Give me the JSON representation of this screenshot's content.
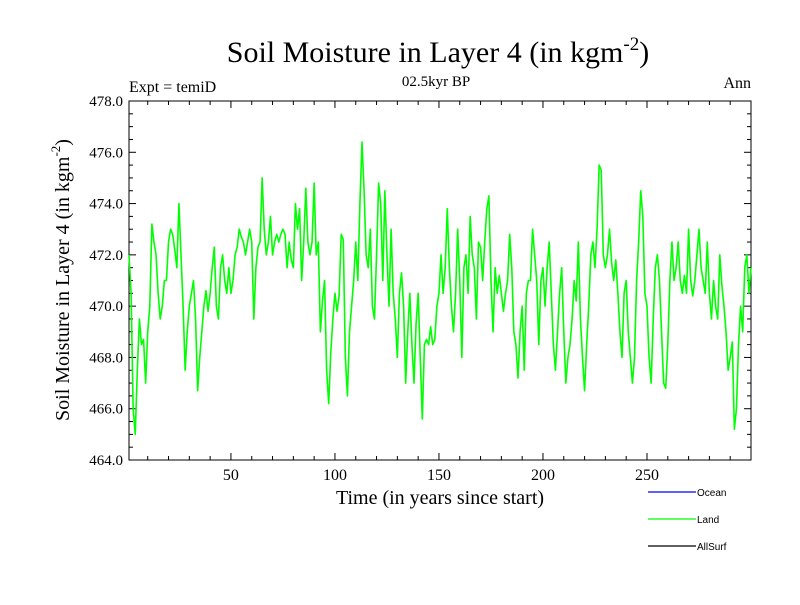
{
  "chart_data": {
    "type": "line",
    "title": "Soil Moisture in Layer 4 (in kgm",
    "title_sup": "-2",
    "title_close": ")",
    "subtitle_left": "Expt = temiD",
    "subtitle_center": "02.5kyr BP",
    "subtitle_right": "Ann",
    "xlabel": "Time (in years since start)",
    "ylabel": "Soil Moisture in Layer 4 (in kgm",
    "ylabel_sup": "-2",
    "ylabel_close": ")",
    "xlim": [
      1,
      300
    ],
    "ylim": [
      464.0,
      478.0
    ],
    "x_ticks": [
      50,
      100,
      150,
      200,
      250
    ],
    "x_tick_labels": [
      "50",
      "100",
      "150",
      "200",
      "250"
    ],
    "y_ticks": [
      464,
      466,
      468,
      470,
      472,
      474,
      476,
      478
    ],
    "y_tick_labels": [
      "464.0",
      "466.0",
      "468.0",
      "470.0",
      "472.0",
      "474.0",
      "476.0",
      "478.0"
    ],
    "legend": [
      {
        "name": "Ocean",
        "color": "#0000ff"
      },
      {
        "name": "Land",
        "color": "#00ff00"
      },
      {
        "name": "AllSurf",
        "color": "#000000"
      }
    ],
    "series": [
      {
        "name": "Land",
        "color": "#00ff00",
        "points": [
          [
            1,
            472.0
          ],
          [
            2,
            470.5
          ],
          [
            3,
            466.0
          ],
          [
            4,
            465.0
          ],
          [
            5,
            467.5
          ],
          [
            6,
            469.5
          ],
          [
            7,
            468.5
          ],
          [
            8,
            468.7
          ],
          [
            9,
            467.0
          ],
          [
            10,
            469.0
          ],
          [
            11,
            470.0
          ],
          [
            12,
            473.2
          ],
          [
            13,
            472.5
          ],
          [
            14,
            472.0
          ],
          [
            15,
            470.5
          ],
          [
            16,
            469.5
          ],
          [
            17,
            470.0
          ],
          [
            18,
            471.0
          ],
          [
            19,
            471.0
          ],
          [
            20,
            472.5
          ],
          [
            21,
            473.0
          ],
          [
            22,
            472.8
          ],
          [
            23,
            472.2
          ],
          [
            24,
            471.5
          ],
          [
            25,
            474.0
          ],
          [
            26,
            472.0
          ],
          [
            27,
            470.0
          ],
          [
            28,
            467.5
          ],
          [
            29,
            469.0
          ],
          [
            30,
            470.0
          ],
          [
            31,
            470.5
          ],
          [
            32,
            471.0
          ],
          [
            33,
            469.5
          ],
          [
            34,
            466.7
          ],
          [
            35,
            468.0
          ],
          [
            36,
            469.0
          ],
          [
            37,
            470.0
          ],
          [
            38,
            470.6
          ],
          [
            39,
            469.8
          ],
          [
            40,
            470.5
          ],
          [
            41,
            471.5
          ],
          [
            42,
            472.3
          ],
          [
            43,
            470.0
          ],
          [
            44,
            469.5
          ],
          [
            45,
            471.5
          ],
          [
            46,
            472.0
          ],
          [
            47,
            471.0
          ],
          [
            48,
            470.5
          ],
          [
            49,
            471.5
          ],
          [
            50,
            470.5
          ],
          [
            51,
            471.0
          ],
          [
            52,
            472.0
          ],
          [
            53,
            472.3
          ],
          [
            54,
            473.0
          ],
          [
            55,
            472.7
          ],
          [
            56,
            472.5
          ],
          [
            57,
            472.0
          ],
          [
            58,
            472.5
          ],
          [
            59,
            473.0
          ],
          [
            60,
            472.5
          ],
          [
            61,
            469.5
          ],
          [
            62,
            471.5
          ],
          [
            63,
            472.3
          ],
          [
            64,
            472.5
          ],
          [
            65,
            475.0
          ],
          [
            66,
            473.0
          ],
          [
            67,
            472.0
          ],
          [
            68,
            472.5
          ],
          [
            69,
            473.5
          ],
          [
            70,
            472.0
          ],
          [
            71,
            472.5
          ],
          [
            72,
            472.8
          ],
          [
            73,
            472.5
          ],
          [
            74,
            472.8
          ],
          [
            75,
            473.0
          ],
          [
            76,
            472.8
          ],
          [
            77,
            471.5
          ],
          [
            78,
            472.5
          ],
          [
            79,
            471.8
          ],
          [
            80,
            471.5
          ],
          [
            81,
            474.0
          ],
          [
            82,
            473.0
          ],
          [
            83,
            473.8
          ],
          [
            84,
            471.0
          ],
          [
            85,
            472.5
          ],
          [
            86,
            474.6
          ],
          [
            87,
            472.5
          ],
          [
            88,
            472.0
          ],
          [
            89,
            472.5
          ],
          [
            90,
            474.8
          ],
          [
            91,
            472.0
          ],
          [
            92,
            472.5
          ],
          [
            93,
            469.0
          ],
          [
            94,
            470.2
          ],
          [
            95,
            471.0
          ],
          [
            96,
            467.5
          ],
          [
            97,
            466.2
          ],
          [
            98,
            468.2
          ],
          [
            99,
            469.5
          ],
          [
            100,
            470.5
          ],
          [
            101,
            469.8
          ],
          [
            102,
            470.4
          ],
          [
            103,
            472.8
          ],
          [
            104,
            472.6
          ],
          [
            105,
            468.0
          ],
          [
            106,
            466.5
          ],
          [
            107,
            469.0
          ],
          [
            108,
            470.0
          ],
          [
            109,
            471.0
          ],
          [
            110,
            472.5
          ],
          [
            111,
            471.0
          ],
          [
            112,
            474.0
          ],
          [
            113,
            476.4
          ],
          [
            114,
            474.5
          ],
          [
            115,
            472.0
          ],
          [
            116,
            471.5
          ],
          [
            117,
            473.0
          ],
          [
            118,
            470.0
          ],
          [
            119,
            469.5
          ],
          [
            120,
            472.0
          ],
          [
            121,
            474.8
          ],
          [
            122,
            474.0
          ],
          [
            123,
            471.0
          ],
          [
            124,
            474.5
          ],
          [
            125,
            472.0
          ],
          [
            126,
            470.0
          ],
          [
            127,
            473.0
          ],
          [
            128,
            470.5
          ],
          [
            129,
            469.5
          ],
          [
            130,
            468.0
          ],
          [
            131,
            470.5
          ],
          [
            132,
            471.3
          ],
          [
            133,
            470.0
          ],
          [
            134,
            467.0
          ],
          [
            135,
            469.0
          ],
          [
            136,
            470.5
          ],
          [
            137,
            468.5
          ],
          [
            138,
            467.0
          ],
          [
            139,
            469.3
          ],
          [
            140,
            470.5
          ],
          [
            141,
            468.0
          ],
          [
            142,
            465.6
          ],
          [
            143,
            468.5
          ],
          [
            144,
            468.7
          ],
          [
            145,
            468.5
          ],
          [
            146,
            469.2
          ],
          [
            147,
            468.5
          ],
          [
            148,
            468.7
          ],
          [
            149,
            470.0
          ],
          [
            150,
            470.5
          ],
          [
            151,
            472.0
          ],
          [
            152,
            470.5
          ],
          [
            153,
            471.5
          ],
          [
            154,
            473.8
          ],
          [
            155,
            471.5
          ],
          [
            156,
            470.0
          ],
          [
            157,
            469.0
          ],
          [
            158,
            470.5
          ],
          [
            159,
            473.0
          ],
          [
            160,
            471.0
          ],
          [
            161,
            468.0
          ],
          [
            162,
            471.5
          ],
          [
            163,
            472.0
          ],
          [
            164,
            470.5
          ],
          [
            165,
            473.5
          ],
          [
            166,
            472.0
          ],
          [
            167,
            471.5
          ],
          [
            168,
            469.5
          ],
          [
            169,
            472.5
          ],
          [
            170,
            472.3
          ],
          [
            171,
            471.0
          ],
          [
            172,
            472.5
          ],
          [
            173,
            473.8
          ],
          [
            174,
            474.3
          ],
          [
            175,
            471.0
          ],
          [
            176,
            469.0
          ],
          [
            177,
            471.5
          ],
          [
            178,
            470.5
          ],
          [
            179,
            471.2
          ],
          [
            180,
            470.5
          ],
          [
            181,
            469.8
          ],
          [
            182,
            470.5
          ],
          [
            183,
            471.0
          ],
          [
            184,
            472.8
          ],
          [
            185,
            471.5
          ],
          [
            186,
            469.0
          ],
          [
            187,
            468.5
          ],
          [
            188,
            467.2
          ],
          [
            189,
            469.0
          ],
          [
            190,
            470.0
          ],
          [
            191,
            467.5
          ],
          [
            192,
            470.5
          ],
          [
            193,
            471.0
          ],
          [
            194,
            471.0
          ],
          [
            195,
            473.0
          ],
          [
            196,
            472.0
          ],
          [
            197,
            471.0
          ],
          [
            198,
            468.5
          ],
          [
            199,
            471.0
          ],
          [
            200,
            471.5
          ],
          [
            201,
            470.0
          ],
          [
            202,
            471.5
          ],
          [
            203,
            472.5
          ],
          [
            204,
            470.5
          ],
          [
            205,
            468.5
          ],
          [
            206,
            467.5
          ],
          [
            207,
            469.0
          ],
          [
            208,
            470.5
          ],
          [
            209,
            471.5
          ],
          [
            210,
            469.0
          ],
          [
            211,
            467.0
          ],
          [
            212,
            468.0
          ],
          [
            213,
            468.5
          ],
          [
            214,
            469.5
          ],
          [
            215,
            471.0
          ],
          [
            216,
            470.2
          ],
          [
            217,
            472.5
          ],
          [
            218,
            469.5
          ],
          [
            219,
            468.0
          ],
          [
            220,
            466.7
          ],
          [
            221,
            468.5
          ],
          [
            222,
            470.0
          ],
          [
            223,
            472.0
          ],
          [
            224,
            472.5
          ],
          [
            225,
            471.5
          ],
          [
            226,
            473.0
          ],
          [
            227,
            475.5
          ],
          [
            228,
            475.3
          ],
          [
            229,
            472.0
          ],
          [
            230,
            471.5
          ],
          [
            231,
            472.0
          ],
          [
            232,
            473.0
          ],
          [
            233,
            471.7
          ],
          [
            234,
            471.0
          ],
          [
            235,
            471.8
          ],
          [
            236,
            470.5
          ],
          [
            237,
            469.0
          ],
          [
            238,
            468.0
          ],
          [
            239,
            470.5
          ],
          [
            240,
            471.0
          ],
          [
            241,
            469.0
          ],
          [
            242,
            468.0
          ],
          [
            243,
            467.0
          ],
          [
            244,
            468.0
          ],
          [
            245,
            471.0
          ],
          [
            246,
            472.5
          ],
          [
            247,
            474.5
          ],
          [
            248,
            473.5
          ],
          [
            249,
            470.5
          ],
          [
            250,
            470.0
          ],
          [
            251,
            468.0
          ],
          [
            252,
            467.0
          ],
          [
            253,
            469.5
          ],
          [
            254,
            471.5
          ],
          [
            255,
            472.0
          ],
          [
            256,
            471.0
          ],
          [
            257,
            469.0
          ],
          [
            258,
            467.0
          ],
          [
            259,
            466.8
          ],
          [
            260,
            468.5
          ],
          [
            261,
            471.0
          ],
          [
            262,
            472.5
          ],
          [
            263,
            471.0
          ],
          [
            264,
            471.5
          ],
          [
            265,
            472.5
          ],
          [
            266,
            471.0
          ],
          [
            267,
            470.5
          ],
          [
            268,
            471.2
          ],
          [
            269,
            470.5
          ],
          [
            270,
            473.0
          ],
          [
            271,
            471.0
          ],
          [
            272,
            470.4
          ],
          [
            273,
            471.0
          ],
          [
            274,
            472.0
          ],
          [
            275,
            473.0
          ],
          [
            276,
            471.5
          ],
          [
            277,
            471.0
          ],
          [
            278,
            470.5
          ],
          [
            279,
            472.5
          ],
          [
            280,
            470.5
          ],
          [
            281,
            469.5
          ],
          [
            282,
            471.0
          ],
          [
            283,
            470.0
          ],
          [
            284,
            469.5
          ],
          [
            285,
            472.0
          ],
          [
            286,
            470.8
          ],
          [
            287,
            470.0
          ],
          [
            288,
            469.0
          ],
          [
            289,
            467.5
          ],
          [
            290,
            468.0
          ],
          [
            291,
            468.6
          ],
          [
            292,
            465.2
          ],
          [
            293,
            466.0
          ],
          [
            294,
            468.5
          ],
          [
            295,
            470.0
          ],
          [
            296,
            469.0
          ],
          [
            297,
            471.5
          ],
          [
            298,
            472.0
          ],
          [
            299,
            470.5
          ],
          [
            300,
            471.5
          ]
        ]
      }
    ]
  }
}
